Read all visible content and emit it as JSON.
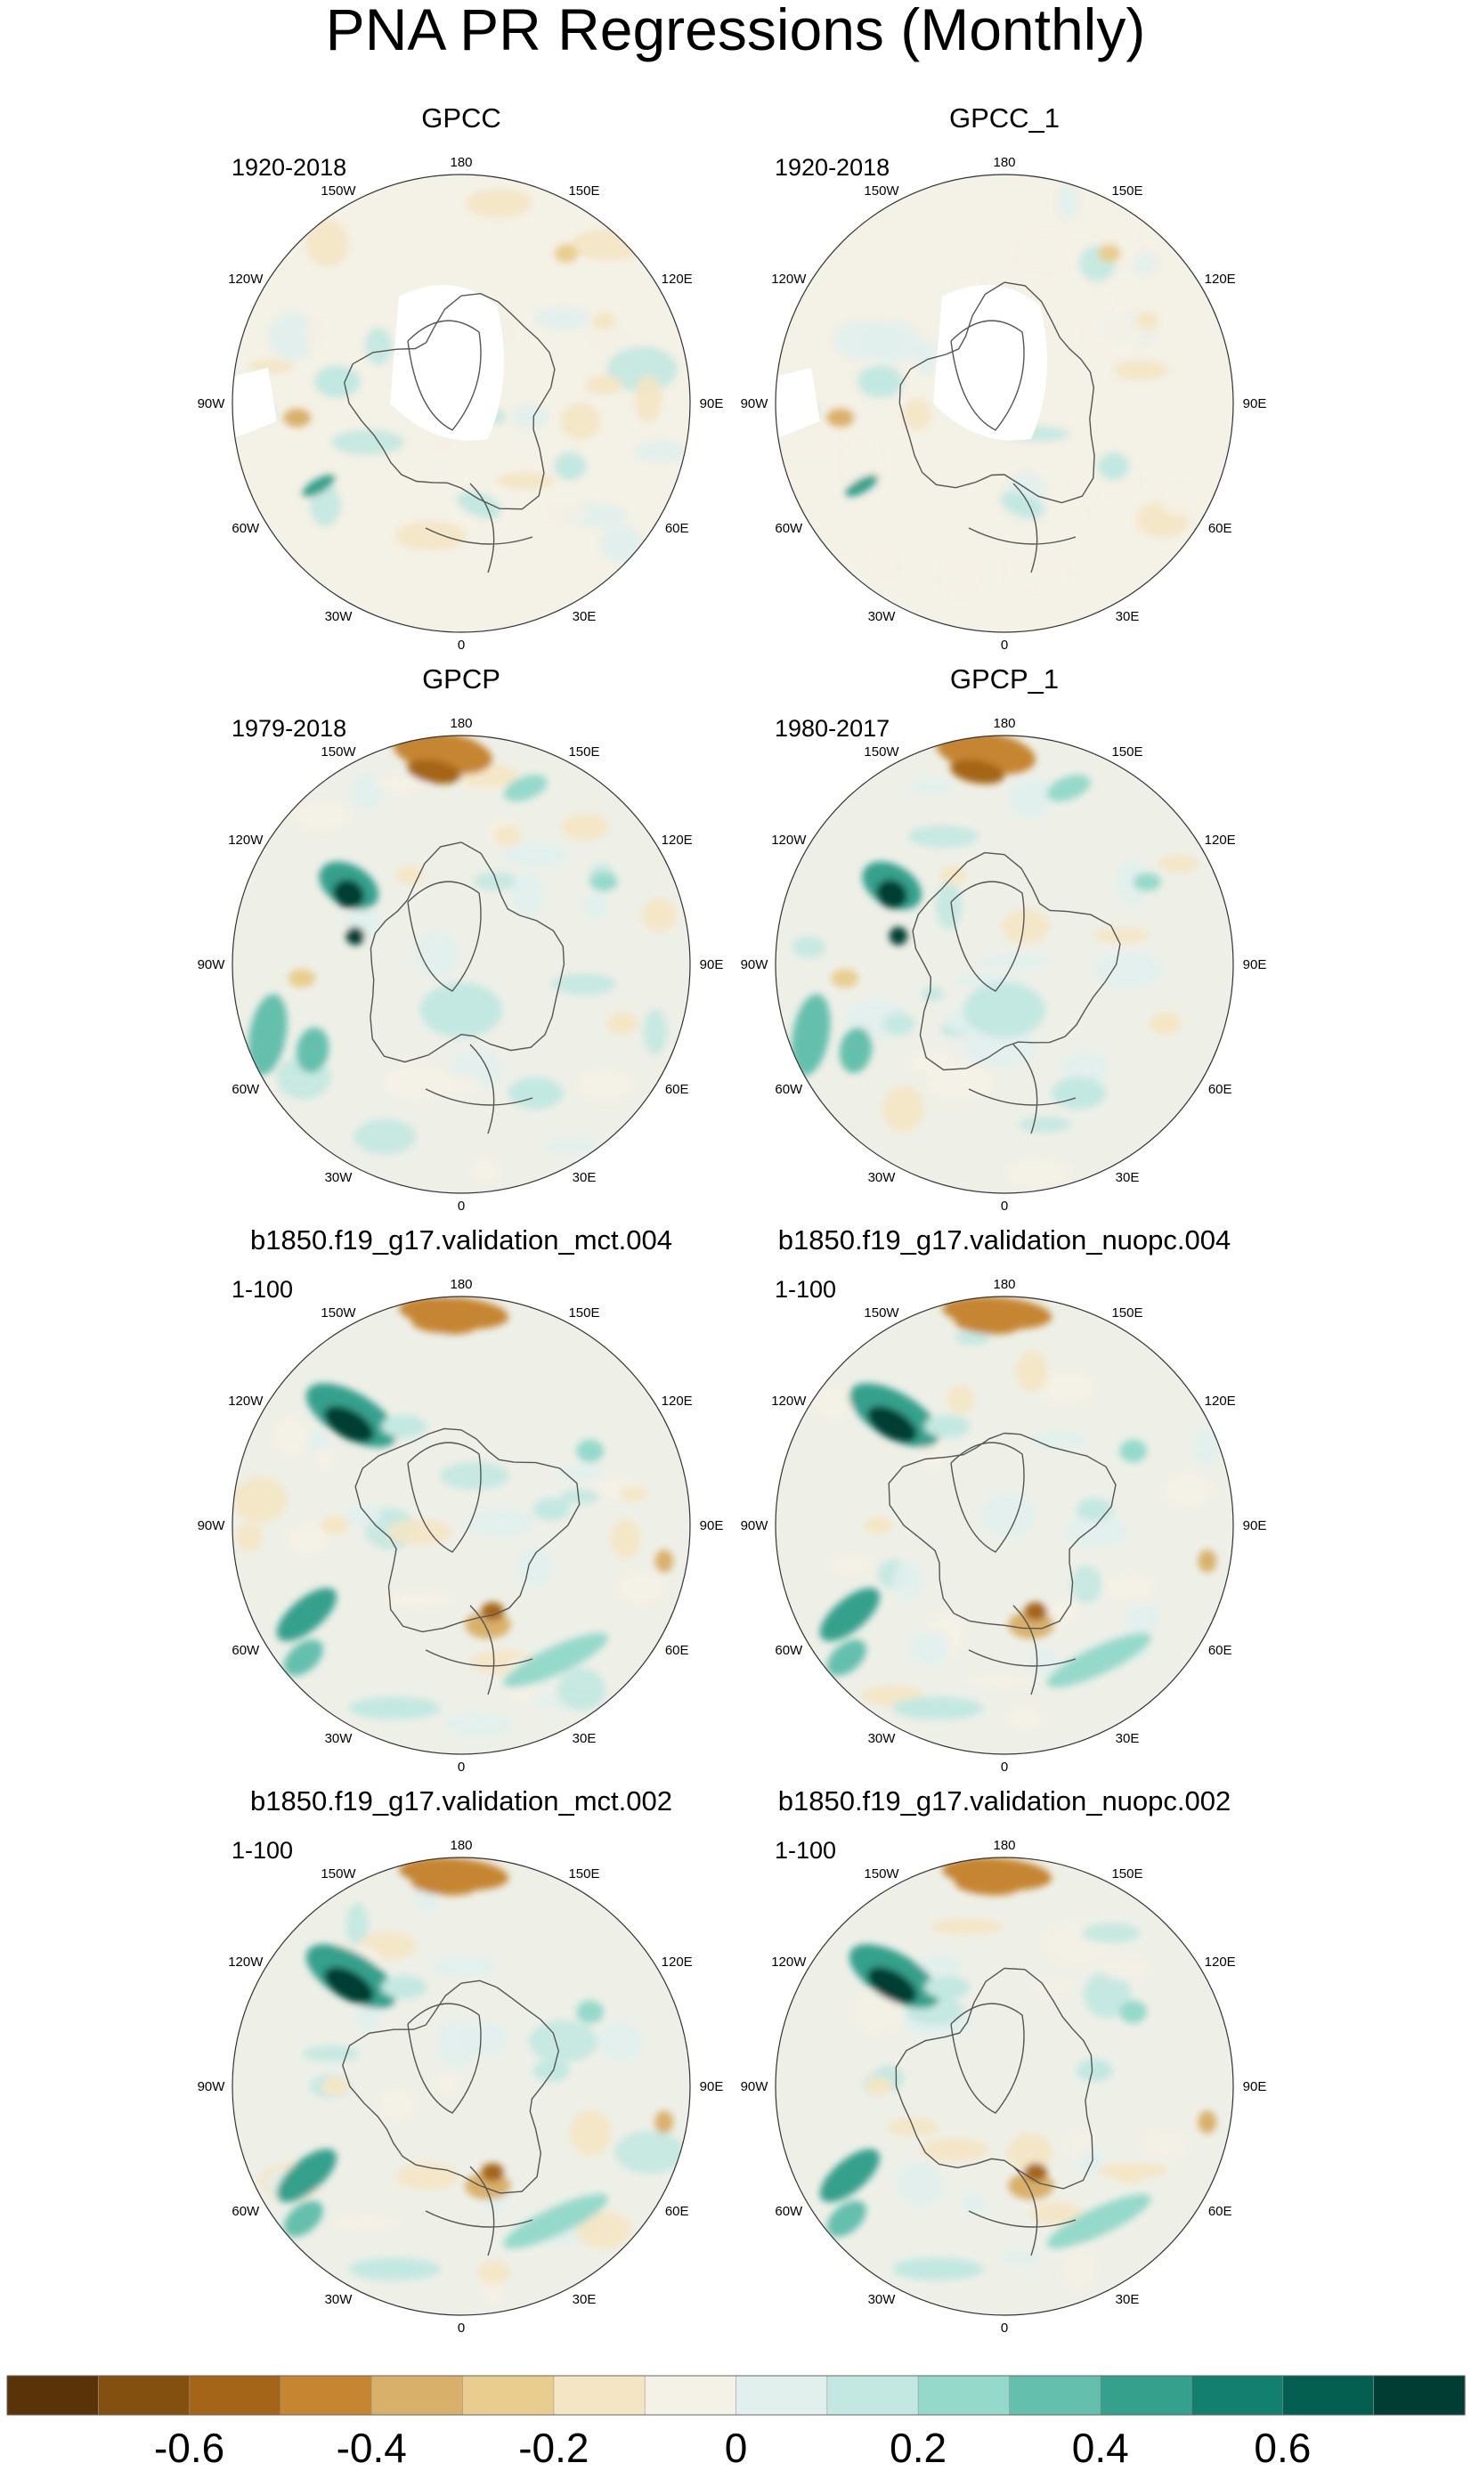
{
  "title": "PNA PR Regressions (Monthly)",
  "chart_data": {
    "type": "heatmap",
    "projection": "polar stereographic, Northern Hemisphere",
    "variable": "PR regression onto PNA index",
    "title": "PNA PR Regressions (Monthly)",
    "longitude_labels": [
      "180",
      "150E",
      "120E",
      "90E",
      "60E",
      "30E",
      "0",
      "30W",
      "60W",
      "90W",
      "120W",
      "150W"
    ],
    "panels": [
      {
        "title": "GPCC",
        "period": "1920-2018",
        "pattern": "gpcc"
      },
      {
        "title": "GPCC_1",
        "period": "1920-2018",
        "pattern": "gpcc"
      },
      {
        "title": "GPCP",
        "period": "1979-2018",
        "pattern": "gpcp"
      },
      {
        "title": "GPCP_1",
        "period": "1980-2017",
        "pattern": "gpcp"
      },
      {
        "title": "b1850.f19_g17.validation_mct.004",
        "period": "1-100",
        "pattern": "model"
      },
      {
        "title": "b1850.f19_g17.validation_nuopc.004",
        "period": "1-100",
        "pattern": "model"
      },
      {
        "title": "b1850.f19_g17.validation_mct.002",
        "period": "1-100",
        "pattern": "model"
      },
      {
        "title": "b1850.f19_g17.validation_nuopc.002",
        "period": "1-100",
        "pattern": "model"
      }
    ],
    "colorbar": {
      "levels": [
        -0.8,
        -0.7,
        -0.6,
        -0.5,
        -0.4,
        -0.3,
        -0.2,
        -0.1,
        0,
        0.1,
        0.2,
        0.3,
        0.4,
        0.5,
        0.6,
        0.7,
        0.8
      ],
      "colors": [
        "#5a3408",
        "#84500f",
        "#a56518",
        "#c68531",
        "#d9b06a",
        "#e8cd8e",
        "#f4e6c4",
        "#f4f1e6",
        "#e1efed",
        "#c2e8e1",
        "#95d9ca",
        "#65bfad",
        "#35a08c",
        "#137f6e",
        "#055f51",
        "#013d33"
      ],
      "tick_values": [
        -0.6,
        -0.4,
        -0.2,
        0,
        0.2,
        0.4,
        0.6
      ],
      "tick_labels": [
        "-0.6",
        "-0.4",
        "-0.2",
        "0",
        "0.2",
        "0.4",
        "0.6"
      ]
    }
  }
}
